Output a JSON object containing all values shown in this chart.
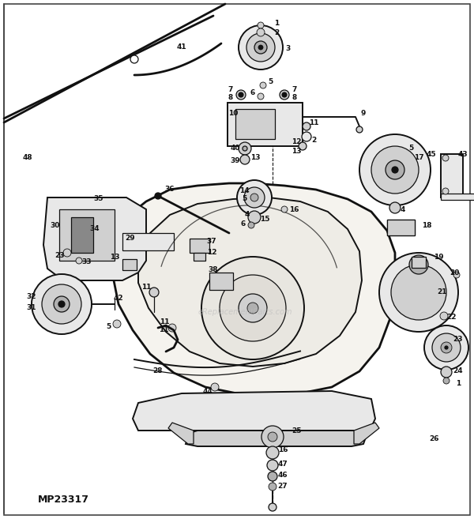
{
  "background_color": "#ffffff",
  "border_color": "#222222",
  "line_color": "#1a1a1a",
  "text_color": "#111111",
  "fill_light": "#f0eeea",
  "fill_mid": "#e0ddd5",
  "fill_dark": "#c8c5bc",
  "watermark": "eReplacementParts.com",
  "watermark_color": "#bbbbbb",
  "part_number": "MP23317",
  "fig_width": 6.0,
  "fig_height": 6.57,
  "dpi": 100
}
